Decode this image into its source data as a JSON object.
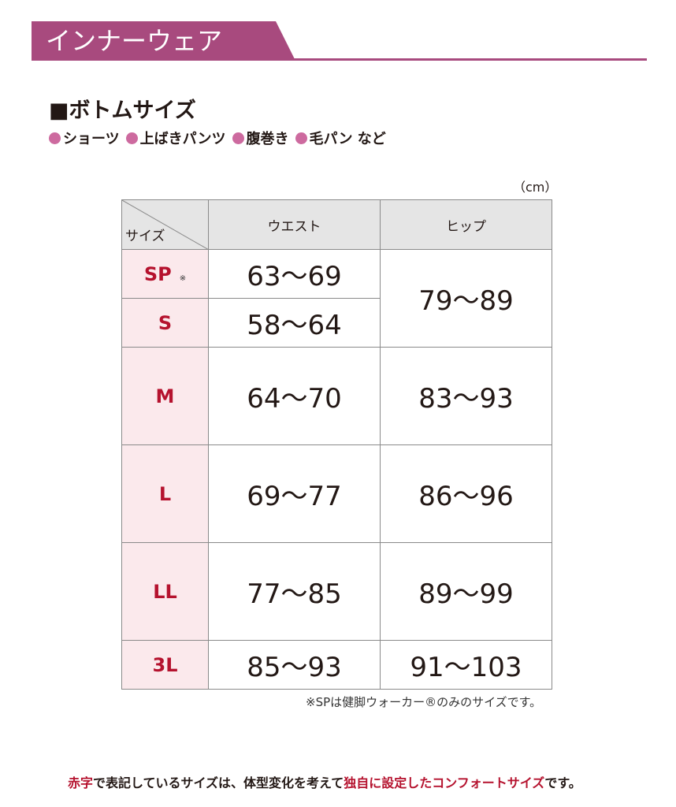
{
  "header": {
    "title": "インナーウェア",
    "color": "#a84a7e"
  },
  "section": {
    "title": "■ボトムサイズ",
    "categories": [
      "ショーツ",
      "上ばきパンツ",
      "腹巻き",
      "毛パン など"
    ]
  },
  "unit": "（cm）",
  "table": {
    "corner_label": "サイズ",
    "columns": [
      "ウエスト",
      "ヒップ"
    ],
    "rows": [
      {
        "size": "SP",
        "mark": "※",
        "waist": "63〜69",
        "hip": "79〜89"
      },
      {
        "size": "S",
        "waist": "58〜64",
        "hip": "79〜89"
      },
      {
        "size": "M",
        "waist": "64〜70",
        "hip": "83〜93"
      },
      {
        "size": "L",
        "waist": "69〜77",
        "hip": "86〜96"
      },
      {
        "size": "LL",
        "waist": "77〜85",
        "hip": "89〜99"
      },
      {
        "size": "3L",
        "waist": "85〜93",
        "hip": "91〜103"
      }
    ]
  },
  "note": "※SPは健脚ウォーカー®のみのサイズです。",
  "footer": {
    "parts": [
      "赤字",
      "で表記しているサイズは、体型変化を考えて",
      "独自に設定したコンフォートサイズ",
      "です。"
    ]
  },
  "colors": {
    "accent": "#a84a7e",
    "size_red": "#b5122e",
    "size_bg": "#fbe9ec",
    "header_bg": "#e5e5e5"
  }
}
